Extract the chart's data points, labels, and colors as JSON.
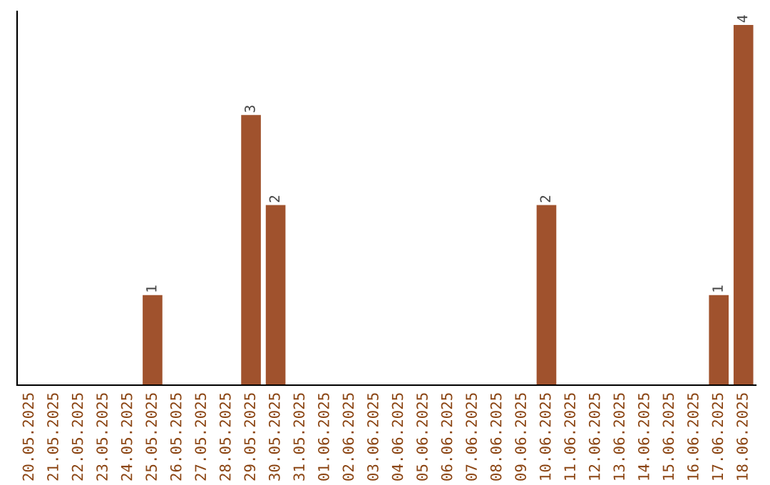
{
  "chart_data": {
    "type": "bar",
    "categories": [
      "20.05.2025",
      "21.05.2025",
      "22.05.2025",
      "23.05.2025",
      "24.05.2025",
      "25.05.2025",
      "26.05.2025",
      "27.05.2025",
      "28.05.2025",
      "29.05.2025",
      "30.05.2025",
      "31.05.2025",
      "01.06.2025",
      "02.06.2025",
      "03.06.2025",
      "04.06.2025",
      "05.06.2025",
      "06.06.2025",
      "07.06.2025",
      "08.06.2025",
      "09.06.2025",
      "10.06.2025",
      "11.06.2025",
      "12.06.2025",
      "13.06.2025",
      "14.06.2025",
      "15.06.2025",
      "16.06.2025",
      "17.06.2025",
      "18.06.2025"
    ],
    "values": [
      0,
      0,
      0,
      0,
      0,
      1,
      0,
      0,
      0,
      3,
      2,
      0,
      0,
      0,
      0,
      0,
      0,
      0,
      0,
      0,
      0,
      2,
      0,
      0,
      0,
      0,
      0,
      0,
      1,
      4
    ],
    "value_labels": [
      null,
      null,
      null,
      null,
      null,
      "1",
      null,
      null,
      null,
      "3",
      "2",
      null,
      null,
      null,
      null,
      null,
      null,
      null,
      null,
      null,
      null,
      "2",
      null,
      null,
      null,
      null,
      null,
      null,
      "1",
      "4"
    ],
    "color": "#a0522d",
    "ylim": [
      0,
      4.15
    ],
    "tick_labels": "x",
    "grid": false,
    "legend": false
  }
}
